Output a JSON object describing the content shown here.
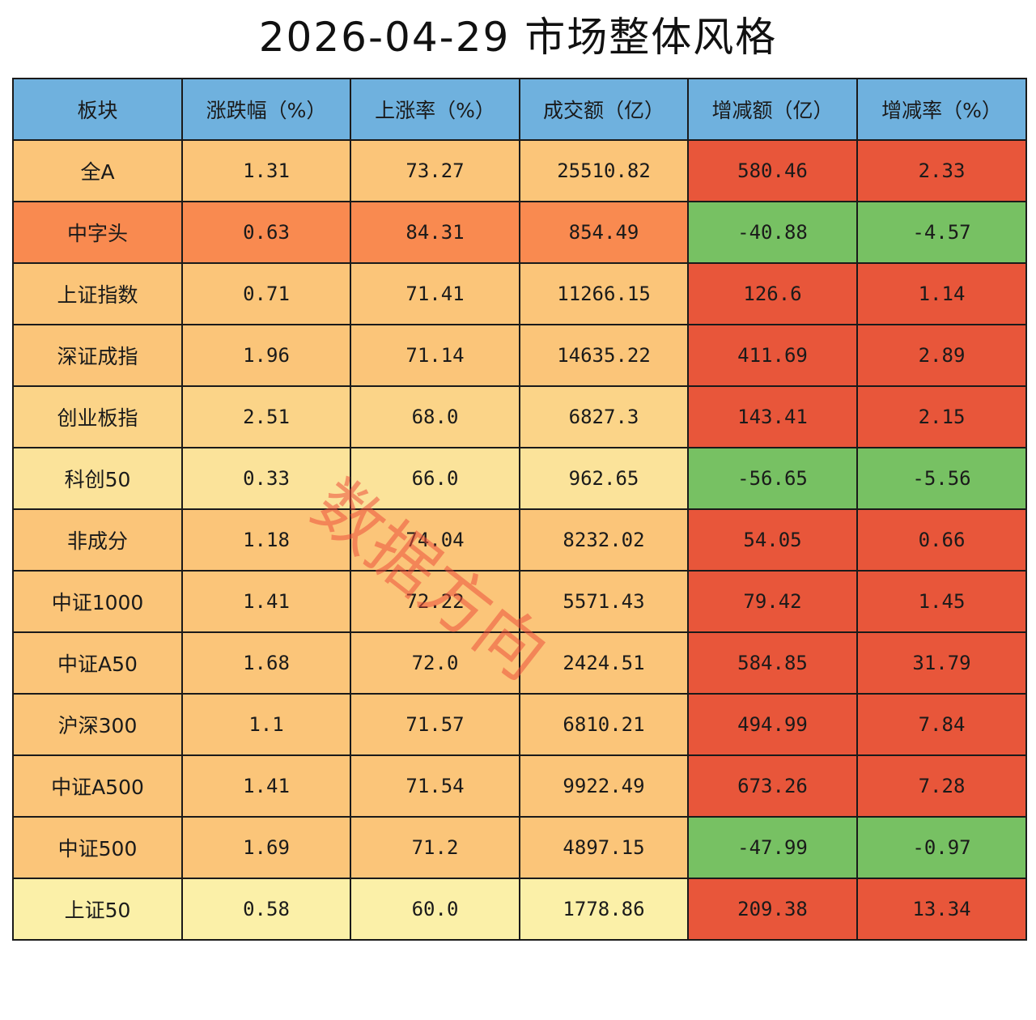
{
  "title": "2026-04-29 市场整体风格",
  "watermark": "数据方向",
  "colors": {
    "header": "#6fb1de",
    "sector_scale": [
      "#fbf0a8",
      "#fbe39a",
      "#fbd488",
      "#fbc579",
      "#f98a50"
    ],
    "positive": "#e8563a",
    "negative": "#77c163"
  },
  "chart_data": {
    "type": "table",
    "title": "2026-04-29 市场整体风格",
    "columns": [
      "板块",
      "涨跌幅（%）",
      "上涨率（%）",
      "成交额（亿）",
      "增减额（亿）",
      "增减率（%）"
    ],
    "rows": [
      [
        "全A",
        "1.31",
        "73.27",
        "25510.82",
        "580.46",
        "2.33"
      ],
      [
        "中字头",
        "0.63",
        "84.31",
        "854.49",
        "-40.88",
        "-4.57"
      ],
      [
        "上证指数",
        "0.71",
        "71.41",
        "11266.15",
        "126.6",
        "1.14"
      ],
      [
        "深证成指",
        "1.96",
        "71.14",
        "14635.22",
        "411.69",
        "2.89"
      ],
      [
        "创业板指",
        "2.51",
        "68.0",
        "6827.3",
        "143.41",
        "2.15"
      ],
      [
        "科创50",
        "0.33",
        "66.0",
        "962.65",
        "-56.65",
        "-5.56"
      ],
      [
        "非成分",
        "1.18",
        "74.04",
        "8232.02",
        "54.05",
        "0.66"
      ],
      [
        "中证1000",
        "1.41",
        "72.22",
        "5571.43",
        "79.42",
        "1.45"
      ],
      [
        "中证A50",
        "1.68",
        "72.0",
        "2424.51",
        "584.85",
        "31.79"
      ],
      [
        "沪深300",
        "1.1",
        "71.57",
        "6810.21",
        "494.99",
        "7.84"
      ],
      [
        "中证A500",
        "1.41",
        "71.54",
        "9922.49",
        "673.26",
        "7.28"
      ],
      [
        "中证500",
        "1.69",
        "71.2",
        "4897.15",
        "-47.99",
        "-0.97"
      ],
      [
        "上证50",
        "0.58",
        "60.0",
        "1778.86",
        "209.38",
        "13.34"
      ]
    ]
  }
}
